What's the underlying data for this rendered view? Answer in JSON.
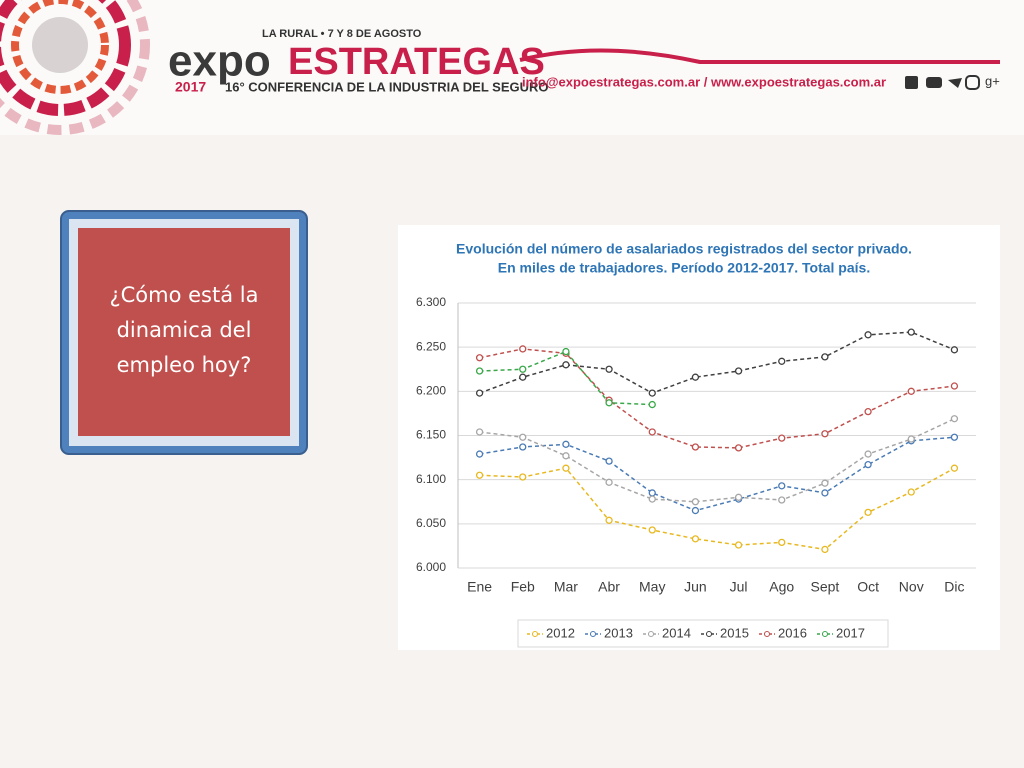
{
  "header": {
    "date_line": "LA RURAL • 7 Y 8 DE AGOSTO",
    "brand_a": "expo",
    "brand_b": "ESTRATEGAS",
    "year": "2017",
    "conference": "16° CONFERENCIA DE LA INDUSTRIA DEL SEGURO",
    "contact": "info@expoestrategas.com.ar / www.expoestrategas.com.ar",
    "social_text": "g+"
  },
  "box": {
    "text": "¿Cómo está la dinamica del empleo hoy?"
  },
  "chart_data": {
    "type": "line",
    "title": "Evolución del número de asalariados registrados del sector privado.",
    "subtitle": "En miles de trabajadores. Período 2012-2017. Total país.",
    "categories": [
      "Ene",
      "Feb",
      "Mar",
      "Abr",
      "May",
      "Jun",
      "Jul",
      "Ago",
      "Sept",
      "Oct",
      "Nov",
      "Dic"
    ],
    "series": [
      {
        "name": "2012",
        "color": "#e8b820",
        "values": [
          6105,
          6103,
          6113,
          6054,
          6043,
          6033,
          6026,
          6029,
          6021,
          6063,
          6086,
          6113
        ]
      },
      {
        "name": "2013",
        "color": "#4a7bb5",
        "values": [
          6129,
          6137,
          6140,
          6121,
          6085,
          6065,
          6078,
          6093,
          6085,
          6117,
          6144,
          6148
        ]
      },
      {
        "name": "2014",
        "color": "#a6a6a6",
        "values": [
          6154,
          6148,
          6127,
          6097,
          6078,
          6075,
          6080,
          6077,
          6096,
          6129,
          6146,
          6169
        ]
      },
      {
        "name": "2015",
        "color": "#404040",
        "values": [
          6198,
          6216,
          6230,
          6225,
          6198,
          6216,
          6223,
          6234,
          6239,
          6264,
          6267,
          6247
        ]
      },
      {
        "name": "2016",
        "color": "#c0504d",
        "values": [
          6238,
          6248,
          6243,
          6190,
          6154,
          6137,
          6136,
          6147,
          6152,
          6177,
          6200,
          6206
        ]
      },
      {
        "name": "2017",
        "color": "#3aa84a",
        "values": [
          6223,
          6225,
          6245,
          6187,
          6185,
          null,
          null,
          null,
          null,
          null,
          null,
          null
        ]
      }
    ],
    "ylim": [
      6000,
      6300
    ],
    "yticks": [
      {
        "value": 6000,
        "label": "6.000"
      },
      {
        "value": 6050,
        "label": "6.050"
      },
      {
        "value": 6100,
        "label": "6.100"
      },
      {
        "value": 6150,
        "label": "6.150"
      },
      {
        "value": 6200,
        "label": "6.200"
      },
      {
        "value": 6250,
        "label": "6.250"
      },
      {
        "value": 6300,
        "label": "6.300"
      }
    ],
    "grid": true,
    "legend": "bottom"
  }
}
